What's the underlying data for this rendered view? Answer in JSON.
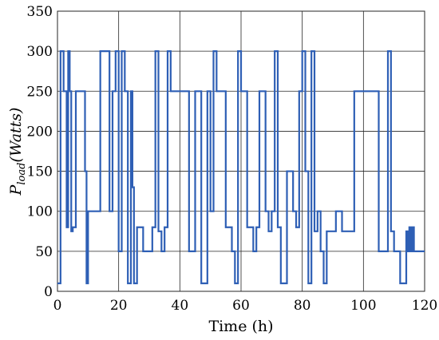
{
  "chart_data": {
    "type": "line",
    "title": "",
    "xlabel": "Time (h)",
    "ylabel": {
      "main": "P",
      "subscript": "load",
      "unit": "(Watts)"
    },
    "xlim": [
      0,
      120
    ],
    "ylim": [
      0,
      350
    ],
    "xticks": [
      0,
      20,
      40,
      60,
      80,
      100,
      120
    ],
    "yticks": [
      0,
      50,
      100,
      150,
      200,
      250,
      300,
      350
    ],
    "grid": true,
    "color": "#2e5fb5",
    "series": [
      {
        "step": "post",
        "x": [
          0,
          1,
          2,
          3,
          3.5,
          4,
          4.5,
          5,
          6,
          8,
          9,
          9.5,
          10,
          11,
          14,
          15,
          17,
          18,
          19,
          20,
          21,
          22,
          23,
          24,
          24.5,
          25,
          26,
          28,
          31,
          32,
          33,
          34,
          35,
          36,
          37,
          40,
          43,
          45,
          47,
          49,
          50,
          51,
          52,
          55,
          57,
          58,
          59,
          60,
          62,
          64,
          65,
          66,
          68,
          69,
          70,
          71,
          72,
          73,
          75,
          77,
          78,
          79,
          80,
          81,
          82,
          83,
          84,
          85,
          86,
          87,
          88,
          91,
          93,
          96,
          97,
          104,
          105,
          108,
          109,
          110,
          112,
          114,
          114.5,
          115,
          115.5,
          116,
          116.5,
          117,
          120
        ],
        "y": [
          10,
          300,
          250,
          80,
          300,
          250,
          75,
          80,
          250,
          250,
          150,
          10,
          100,
          100,
          300,
          300,
          100,
          250,
          300,
          50,
          300,
          250,
          10,
          250,
          130,
          10,
          80,
          50,
          80,
          300,
          75,
          50,
          80,
          300,
          250,
          250,
          50,
          250,
          10,
          250,
          100,
          300,
          250,
          80,
          50,
          10,
          300,
          250,
          80,
          50,
          80,
          250,
          100,
          75,
          100,
          300,
          80,
          10,
          150,
          100,
          80,
          250,
          300,
          150,
          10,
          300,
          75,
          100,
          50,
          10,
          75,
          100,
          75,
          75,
          250,
          250,
          50,
          300,
          75,
          50,
          10,
          75,
          50,
          80,
          50,
          80,
          50,
          50,
          50
        ]
      }
    ]
  }
}
